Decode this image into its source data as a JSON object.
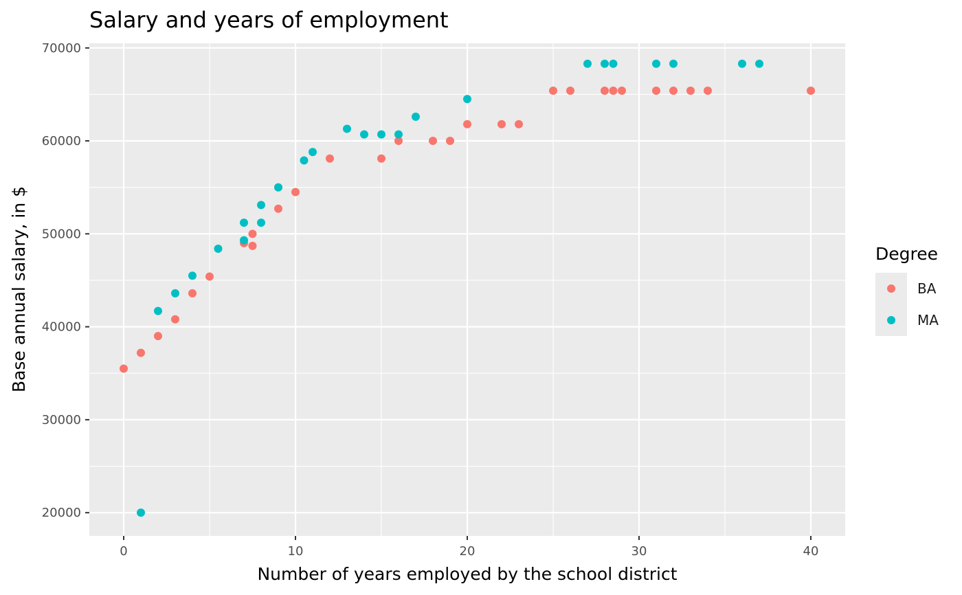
{
  "chart_data": {
    "type": "scatter",
    "title": "Salary and years of employment",
    "xlabel": "Number of years employed by the school district",
    "ylabel": "Base annual salary, in $",
    "xlim": [
      -2,
      42
    ],
    "ylim": [
      17500,
      70500
    ],
    "x_ticks": [
      0,
      10,
      20,
      30,
      40
    ],
    "x_tick_labels": [
      "0",
      "10",
      "20",
      "30",
      "40"
    ],
    "y_ticks": [
      20000,
      30000,
      40000,
      50000,
      60000,
      70000
    ],
    "y_tick_labels": [
      "20000",
      "30000",
      "40000",
      "50000",
      "60000",
      "70000"
    ],
    "grid": true,
    "legend": {
      "title": "Degree",
      "position": "right",
      "entries": [
        "BA",
        "MA"
      ]
    },
    "series": [
      {
        "name": "BA",
        "color": "#F8766D",
        "points": [
          [
            0,
            35500
          ],
          [
            1,
            37200
          ],
          [
            2,
            39000
          ],
          [
            3,
            40800
          ],
          [
            4,
            43600
          ],
          [
            5,
            45400
          ],
          [
            7,
            49000
          ],
          [
            7.5,
            48700
          ],
          [
            7.5,
            50000
          ],
          [
            9,
            52700
          ],
          [
            9,
            55000
          ],
          [
            10,
            54500
          ],
          [
            12,
            58100
          ],
          [
            15,
            58100
          ],
          [
            16,
            60000
          ],
          [
            18,
            60000
          ],
          [
            19,
            60000
          ],
          [
            20,
            61800
          ],
          [
            22,
            61800
          ],
          [
            23,
            61800
          ],
          [
            25,
            65400
          ],
          [
            26,
            65400
          ],
          [
            28,
            65400
          ],
          [
            28.5,
            65400
          ],
          [
            29,
            65400
          ],
          [
            31,
            65400
          ],
          [
            32,
            65400
          ],
          [
            33,
            65400
          ],
          [
            34,
            65400
          ],
          [
            40,
            65400
          ]
        ]
      },
      {
        "name": "MA",
        "color": "#00BFC4",
        "points": [
          [
            1,
            20000
          ],
          [
            2,
            41700
          ],
          [
            3,
            43600
          ],
          [
            4,
            45500
          ],
          [
            5.5,
            48400
          ],
          [
            7,
            49300
          ],
          [
            7,
            51200
          ],
          [
            8,
            51200
          ],
          [
            8,
            53100
          ],
          [
            9,
            55000
          ],
          [
            10.5,
            57900
          ],
          [
            11,
            58800
          ],
          [
            13,
            61300
          ],
          [
            14,
            60700
          ],
          [
            15,
            60700
          ],
          [
            16,
            60700
          ],
          [
            17,
            62600
          ],
          [
            20,
            64500
          ],
          [
            27,
            68300
          ],
          [
            28,
            68300
          ],
          [
            28.5,
            68300
          ],
          [
            31,
            68300
          ],
          [
            32,
            68300
          ],
          [
            36,
            68300
          ],
          [
            37,
            68300
          ]
        ]
      }
    ]
  }
}
